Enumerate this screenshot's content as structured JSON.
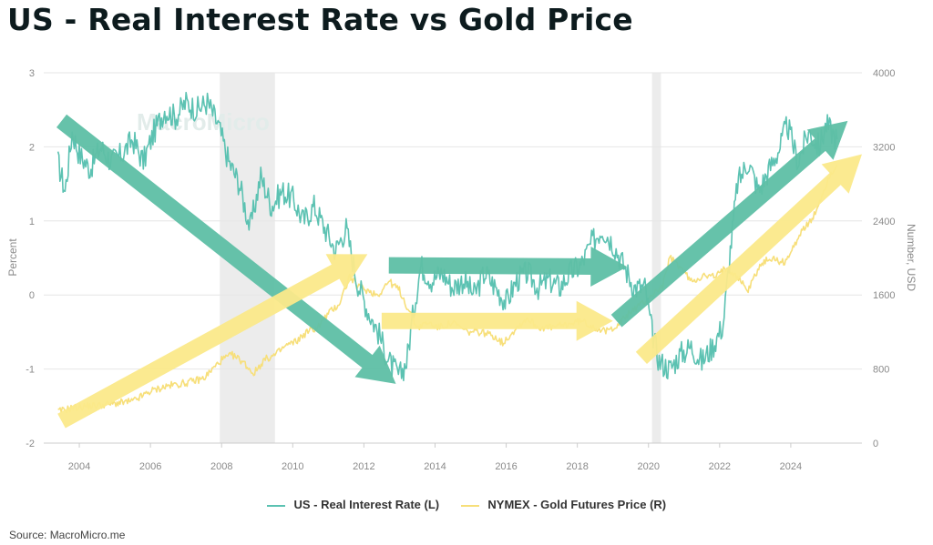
{
  "title": "US - Real Interest Rate vs Gold Price",
  "source": "Source: MacroMicro.me",
  "watermark": "MacroMicro",
  "chart_data": {
    "type": "line",
    "title": "US - Real Interest Rate vs Gold Price",
    "xlabel": "",
    "ylabel_left": "Percent",
    "ylabel_right": "Number, USD",
    "xlim": [
      2003.0,
      2026.0
    ],
    "ylim_left": [
      -2,
      3
    ],
    "ylim_right": [
      0,
      4000
    ],
    "x_ticks": [
      "2004",
      "2006",
      "2008",
      "2010",
      "2012",
      "2014",
      "2016",
      "2018",
      "2020",
      "2022",
      "2024"
    ],
    "y_left_ticks": [
      "3",
      "2",
      "1",
      "0",
      "-1",
      "-2"
    ],
    "y_right_ticks": [
      "4000",
      "3200",
      "2400",
      "1600",
      "800",
      "0"
    ],
    "grid": true,
    "recessions": [
      {
        "start": 2007.95,
        "end": 2009.5
      },
      {
        "start": 2020.1,
        "end": 2020.35
      }
    ],
    "colors": {
      "rate_line": "#5cc2b2",
      "gold_line": "#f7df7a",
      "rate_arrow": "#5ebfa5",
      "gold_arrow": "#fbe98a",
      "recession": "#ececec"
    },
    "series": [
      {
        "name": "US - Real Interest Rate (L)",
        "axis": "left",
        "x": [
          2003.4,
          2003.6,
          2003.8,
          2004.0,
          2004.3,
          2004.6,
          2004.9,
          2005.2,
          2005.5,
          2005.8,
          2006.1,
          2006.4,
          2006.7,
          2007.0,
          2007.3,
          2007.6,
          2007.9,
          2008.2,
          2008.5,
          2008.8,
          2009.1,
          2009.4,
          2009.7,
          2010.0,
          2010.3,
          2010.6,
          2010.9,
          2011.2,
          2011.5,
          2011.8,
          2012.1,
          2012.4,
          2012.7,
          2013.0,
          2013.2,
          2013.4,
          2013.6,
          2013.9,
          2014.2,
          2014.5,
          2014.8,
          2015.1,
          2015.4,
          2015.7,
          2016.0,
          2016.3,
          2016.6,
          2016.9,
          2017.2,
          2017.5,
          2017.8,
          2018.1,
          2018.4,
          2018.7,
          2019.0,
          2019.3,
          2019.6,
          2019.9,
          2020.1,
          2020.3,
          2020.6,
          2020.9,
          2021.2,
          2021.5,
          2021.8,
          2022.1,
          2022.3,
          2022.5,
          2022.8,
          2023.1,
          2023.4,
          2023.7,
          2023.9,
          2024.2,
          2024.5,
          2024.8,
          2025.0,
          2025.3
        ],
        "values": [
          1.8,
          1.4,
          2.2,
          1.9,
          1.7,
          2.0,
          1.8,
          1.9,
          2.1,
          1.8,
          2.2,
          2.5,
          2.4,
          2.6,
          2.5,
          2.6,
          2.3,
          1.8,
          1.5,
          0.9,
          1.6,
          1.2,
          1.4,
          1.3,
          1.0,
          1.2,
          0.9,
          0.6,
          0.9,
          0.2,
          -0.2,
          -0.5,
          -0.9,
          -1.1,
          -0.9,
          -0.2,
          0.4,
          0.2,
          0.3,
          0.1,
          0.2,
          0.0,
          0.3,
          0.1,
          -0.1,
          0.2,
          0.3,
          0.1,
          0.2,
          0.1,
          0.3,
          0.4,
          0.7,
          0.9,
          0.7,
          0.4,
          0.1,
          0.1,
          -0.5,
          -0.9,
          -1.0,
          -0.8,
          -0.7,
          -0.9,
          -0.7,
          -0.4,
          0.6,
          1.5,
          1.8,
          1.4,
          1.7,
          2.0,
          2.3,
          1.8,
          2.2,
          2.0,
          2.3,
          2.1
        ]
      },
      {
        "name": "NYMEX - Gold Futures Price (R)",
        "axis": "right",
        "x": [
          2003.4,
          2003.8,
          2004.2,
          2004.6,
          2005.0,
          2005.5,
          2006.0,
          2006.5,
          2007.0,
          2007.5,
          2008.0,
          2008.3,
          2008.6,
          2008.9,
          2009.2,
          2009.5,
          2009.8,
          2010.1,
          2010.4,
          2010.7,
          2011.0,
          2011.3,
          2011.6,
          2011.8,
          2012.1,
          2012.4,
          2012.7,
          2013.0,
          2013.3,
          2013.5,
          2013.8,
          2014.1,
          2014.5,
          2014.9,
          2015.3,
          2015.7,
          2015.9,
          2016.3,
          2016.6,
          2016.9,
          2017.3,
          2017.7,
          2018.1,
          2018.5,
          2018.8,
          2019.2,
          2019.5,
          2019.8,
          2020.1,
          2020.4,
          2020.6,
          2020.9,
          2021.2,
          2021.5,
          2021.9,
          2022.2,
          2022.5,
          2022.8,
          2023.1,
          2023.4,
          2023.8,
          2024.0,
          2024.3,
          2024.6,
          2024.9,
          2025.1,
          2025.3
        ],
        "values": [
          340,
          380,
          400,
          410,
          430,
          450,
          560,
          620,
          650,
          700,
          900,
          950,
          880,
          750,
          900,
          950,
          1050,
          1100,
          1200,
          1250,
          1400,
          1500,
          1800,
          1700,
          1650,
          1600,
          1750,
          1650,
          1400,
          1250,
          1300,
          1250,
          1300,
          1200,
          1200,
          1150,
          1080,
          1250,
          1350,
          1250,
          1250,
          1280,
          1320,
          1250,
          1200,
          1300,
          1420,
          1500,
          1600,
          1700,
          2000,
          1900,
          1750,
          1800,
          1800,
          1900,
          1800,
          1650,
          1900,
          2000,
          1950,
          2050,
          2300,
          2400,
          2700,
          2900,
          3000
        ]
      }
    ],
    "trend_arrows": [
      {
        "color": "rate_arrow",
        "x1": 2003.5,
        "y1": 2.35,
        "x2": 2012.9,
        "y2": -1.2
      },
      {
        "color": "rate_arrow",
        "x1": 2012.7,
        "y1": 0.4,
        "x2": 2019.4,
        "y2": 0.38
      },
      {
        "color": "rate_arrow",
        "x1": 2019.1,
        "y1": -0.35,
        "x2": 2025.6,
        "y2": 2.35
      },
      {
        "color": "gold_arrow",
        "x1": 2003.5,
        "y1": -1.7,
        "x2": 2012.1,
        "y2": 0.55
      },
      {
        "color": "gold_arrow",
        "x1": 2012.5,
        "y1": -0.35,
        "x2": 2019.0,
        "y2": -0.35
      },
      {
        "color": "gold_arrow",
        "x1": 2019.8,
        "y1": -0.85,
        "x2": 2026.0,
        "y2": 1.9
      }
    ]
  },
  "legend": [
    {
      "label": "US - Real Interest Rate (L)",
      "color": "#5cc2b2"
    },
    {
      "label": "NYMEX - Gold Futures Price (R)",
      "color": "#f7df7a"
    }
  ]
}
